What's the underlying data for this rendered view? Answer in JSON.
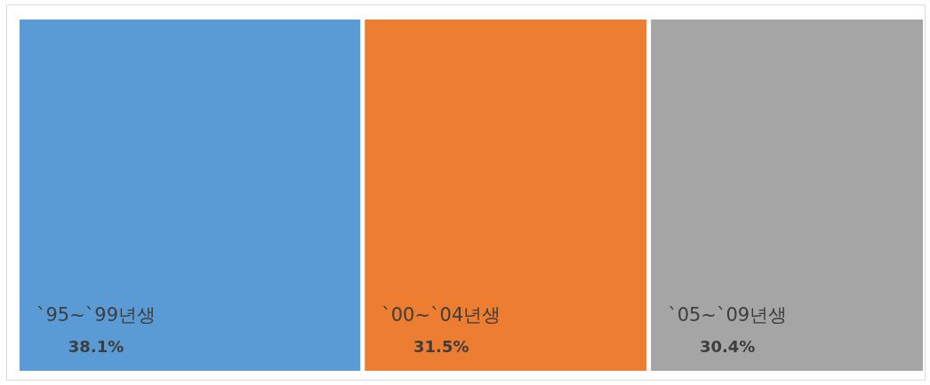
{
  "chart_data": {
    "type": "other",
    "categories": [
      "`95~`99년생",
      "`00~`04년생",
      "`05~`09년생"
    ],
    "values": [
      38.1,
      31.5,
      30.4
    ],
    "colors": [
      "#5b9bd5",
      "#ed7d31",
      "#a5a5a5"
    ],
    "value_labels": [
      "38.1%",
      "31.5%",
      "30.4%"
    ]
  }
}
